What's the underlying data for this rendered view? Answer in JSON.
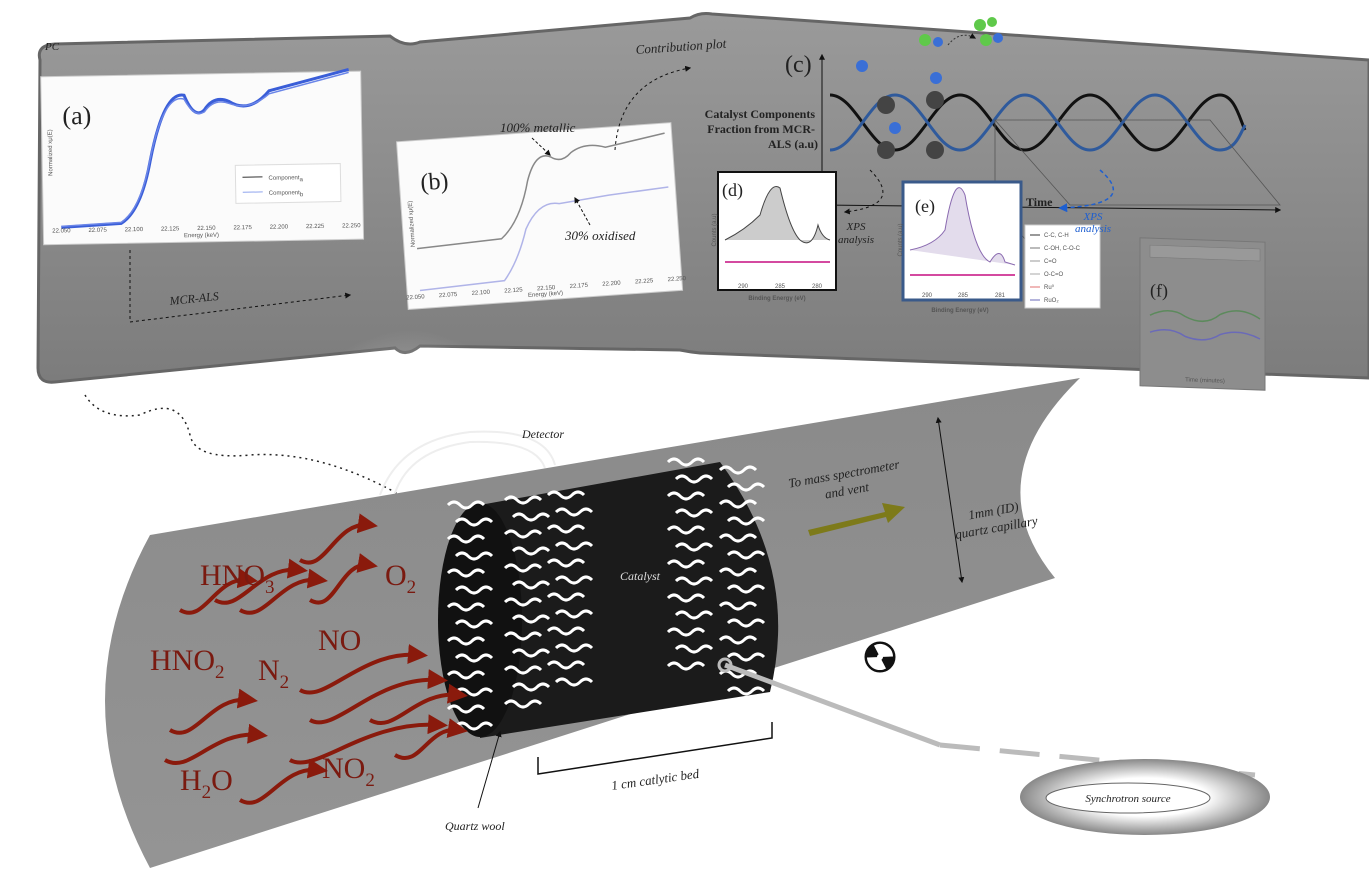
{
  "top_panel": {
    "label": "PC",
    "plot_a": {
      "panel": "(a)",
      "y_label": "Normalized xμ(E)",
      "x_label": "Energy (keV)",
      "x_ticks": [
        "22.050",
        "22.075",
        "22.100",
        "22.125",
        "22.150",
        "22.175",
        "22.200",
        "22.225",
        "22.250"
      ],
      "legend": [
        {
          "text": "Component",
          "sub": "a"
        },
        {
          "text": "Component",
          "sub": "b"
        }
      ]
    },
    "mcr_label": "MCR-ALS",
    "plot_b": {
      "panel": "(b)",
      "y_label": "Normalized xμ(E)",
      "x_label": "Energy (keV)",
      "x_ticks": [
        "22.050",
        "22.075",
        "22.100",
        "22.125",
        "22.150",
        "22.175",
        "22.200",
        "22.225",
        "22.250"
      ],
      "annotation_top": "100% metallic",
      "annotation_bottom": "30% oxidised"
    },
    "contribution_label": "Contribution plot",
    "panel_c": "(c)",
    "fraction_label": [
      "Catalyst Components",
      "Fraction from MCR-",
      "ALS (a.u)"
    ],
    "time_label": "Time",
    "plot_d": {
      "panel": "(d)",
      "y_label": "Counts (a.u)",
      "x_label": "Binding Energy (eV)",
      "x_ticks": [
        "290",
        "285",
        "280"
      ]
    },
    "xps_left": [
      "XPS",
      "analysis"
    ],
    "plot_e": {
      "panel": "(e)",
      "y_label": "Counts (a.u)",
      "x_label": "Binding Energy (eV)",
      "x_ticks": [
        "290",
        "285",
        "281"
      ],
      "legend": [
        "C-C, C-H",
        "C-OH, C-O-C",
        "C=O",
        "O-C=O",
        "Ru⁰",
        "RuO₂"
      ]
    },
    "xps_right": [
      "XPS",
      "analysis"
    ],
    "plot_f": {
      "panel": "(f)",
      "x_label": "Time (minutes)"
    }
  },
  "reactor": {
    "detector": "Detector",
    "catalyst": "Catalyst",
    "bed": "1 cm catlytic bed",
    "quartz_wool": "Quartz wool",
    "outlet": [
      "To mass spectrometer",
      "and vent"
    ],
    "capillary": [
      "1mm (ID)",
      "quartz capillary"
    ],
    "source": "Synchrotron source",
    "molecules": [
      {
        "base": "HNO",
        "sub": "3"
      },
      {
        "base": "O",
        "sub": "2"
      },
      {
        "base": "HNO",
        "sub": "2"
      },
      {
        "base": "N",
        "sub": "2"
      },
      {
        "base": "NO",
        "sub": ""
      },
      {
        "base": "H",
        "sub": "2",
        "tail": "O"
      },
      {
        "base": "NO",
        "sub": "2"
      }
    ]
  }
}
